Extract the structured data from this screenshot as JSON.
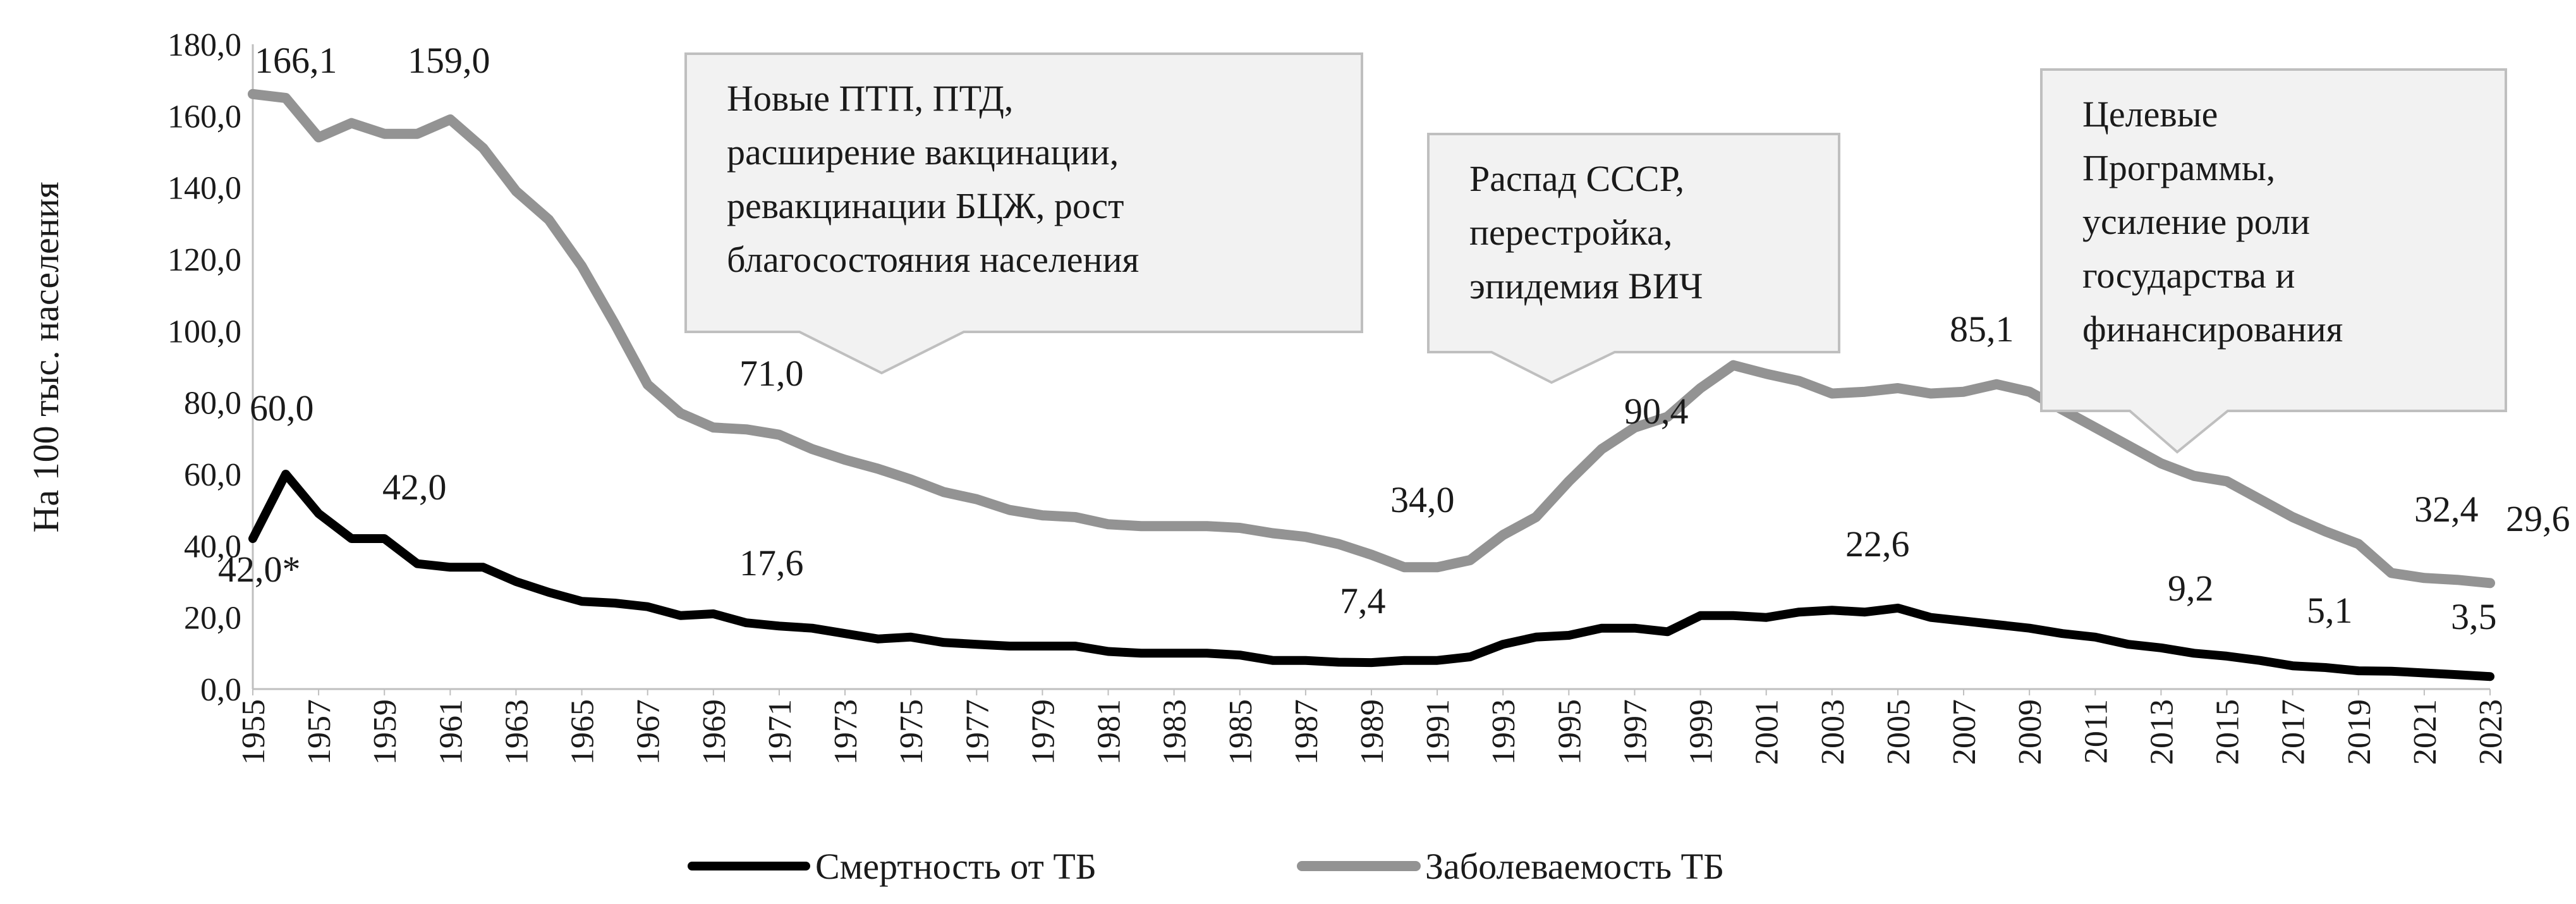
{
  "chart_data": {
    "type": "line",
    "ylabel": "На 100 тыс. населения",
    "xlabel": "",
    "ylim": [
      0,
      180
    ],
    "y_ticks": [
      "0,0",
      "20,0",
      "40,0",
      "60,0",
      "80,0",
      "100,0",
      "120,0",
      "140,0",
      "160,0",
      "180,0"
    ],
    "x": [
      1955,
      1956,
      1957,
      1958,
      1959,
      1960,
      1961,
      1962,
      1963,
      1964,
      1965,
      1966,
      1967,
      1968,
      1969,
      1970,
      1971,
      1972,
      1973,
      1974,
      1975,
      1976,
      1977,
      1978,
      1979,
      1980,
      1981,
      1982,
      1983,
      1984,
      1985,
      1986,
      1987,
      1988,
      1989,
      1990,
      1991,
      1992,
      1993,
      1994,
      1995,
      1996,
      1997,
      1998,
      1999,
      2000,
      2001,
      2002,
      2003,
      2004,
      2005,
      2006,
      2007,
      2008,
      2009,
      2010,
      2011,
      2012,
      2013,
      2014,
      2015,
      2016,
      2017,
      2018,
      2019,
      2020,
      2021,
      2022,
      2023
    ],
    "x_tick_labels": [
      "1955",
      "1957",
      "1959",
      "1961",
      "1963",
      "1965",
      "1967",
      "1969",
      "1971",
      "1973",
      "1975",
      "1977",
      "1979",
      "1981",
      "1983",
      "1985",
      "1987",
      "1989",
      "1991",
      "1993",
      "1995",
      "1997",
      "1999",
      "2001",
      "2003",
      "2005",
      "2007",
      "2009",
      "2011",
      "2013",
      "2015",
      "2017",
      "2019",
      "2021",
      "2023"
    ],
    "series": [
      {
        "name": "Смертность от ТБ",
        "color": "#000000",
        "values": [
          42.0,
          60.0,
          49.0,
          42.0,
          42.0,
          35.0,
          34.0,
          34.0,
          30.0,
          27.0,
          24.5,
          24.0,
          23.0,
          20.5,
          21.0,
          18.5,
          17.6,
          17.0,
          15.5,
          14.0,
          14.5,
          13.0,
          12.5,
          12.0,
          12.0,
          12.0,
          10.5,
          10.0,
          10.0,
          10.0,
          9.5,
          8.0,
          8.0,
          7.5,
          7.4,
          8.0,
          8.0,
          9.0,
          12.5,
          14.5,
          15.0,
          17.0,
          17.0,
          16.0,
          20.5,
          20.5,
          20.0,
          21.5,
          22.0,
          21.5,
          22.6,
          20.0,
          19.0,
          18.0,
          17.0,
          15.5,
          14.5,
          12.5,
          11.5,
          10.0,
          9.2,
          8.0,
          6.5,
          6.0,
          5.1,
          5.0,
          4.5,
          4.0,
          3.5
        ]
      },
      {
        "name": "Заболеваемость ТБ",
        "color": "#939393",
        "values": [
          166.1,
          165.0,
          154.0,
          158.0,
          155.0,
          155.0,
          159.0,
          151.0,
          139.0,
          131.0,
          118.0,
          102.0,
          85.0,
          77.0,
          73.0,
          72.5,
          71.0,
          67.0,
          64.0,
          61.5,
          58.5,
          55.0,
          53.0,
          50.0,
          48.5,
          48.0,
          46.0,
          45.5,
          45.5,
          45.5,
          45.0,
          43.5,
          42.5,
          40.5,
          37.5,
          34.0,
          34.0,
          36.0,
          43.0,
          48.0,
          58.0,
          67.0,
          73.0,
          76.0,
          84.0,
          90.4,
          88.0,
          86.0,
          82.5,
          83.0,
          84.0,
          82.5,
          83.0,
          85.1,
          83.0,
          78.0,
          73.0,
          68.0,
          63.0,
          59.5,
          58.0,
          53.0,
          48.0,
          44.0,
          40.5,
          32.4,
          31.0,
          30.5,
          29.6
        ]
      }
    ],
    "data_labels": [
      {
        "text": "166,1"
      },
      {
        "text": "159,0"
      },
      {
        "text": "71,0"
      },
      {
        "text": "34,0"
      },
      {
        "text": "90,4"
      },
      {
        "text": "85,1"
      },
      {
        "text": "32,4"
      },
      {
        "text": "29,6"
      },
      {
        "text": "42,0*"
      },
      {
        "text": "60,0"
      },
      {
        "text": "42,0"
      },
      {
        "text": "17,6"
      },
      {
        "text": "7,4"
      },
      {
        "text": "22,6"
      },
      {
        "text": "9,2"
      },
      {
        "text": "5,1"
      },
      {
        "text": "3,5"
      }
    ],
    "annotations": [
      {
        "lines": [
          "Новые ПТП, ПТД,",
          "расширение вакцинации,",
          "ревакцинации БЦЖ, рост",
          "благосостояния населения"
        ]
      },
      {
        "lines": [
          "Распад СССР,",
          "перестройка,",
          "эпидемия ВИЧ"
        ]
      },
      {
        "lines": [
          "Целевые",
          "Программы,",
          "усиление роли",
          "государства и",
          "финансирования"
        ]
      }
    ],
    "legend": {
      "position": "bottom"
    }
  }
}
